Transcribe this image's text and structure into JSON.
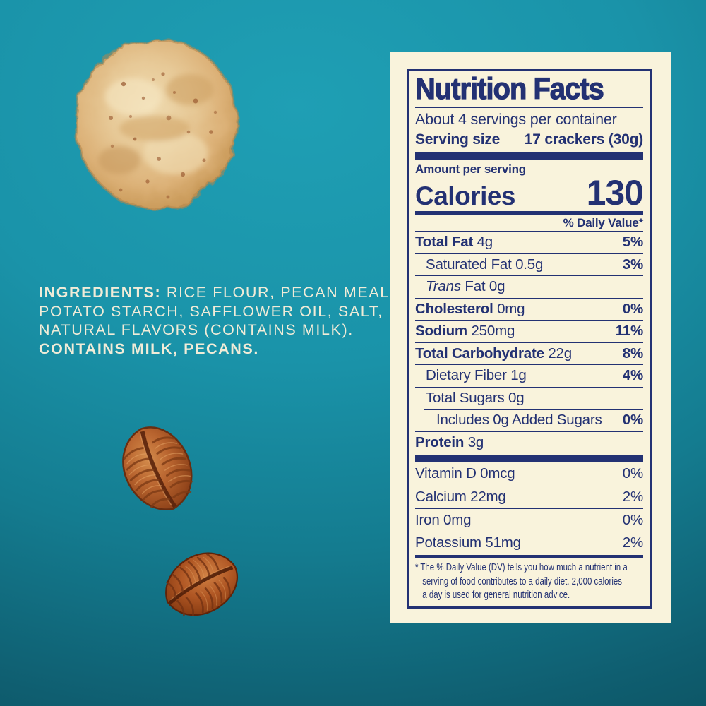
{
  "colors": {
    "background_teal_top": "#1f9fb4",
    "background_teal_bottom": "#0d5767",
    "label_cream": "#f9f3dc",
    "label_navy": "#233173",
    "ingredients_text": "#f1ecd8",
    "cracker_tan": "#e2c18d",
    "pecan_brown": "#b25a28"
  },
  "images": {
    "cracker": "round rice cracker with pecan flecks",
    "pecan_top": "pecan half",
    "pecan_bottom": "pecan half"
  },
  "ingredients": {
    "lines": [
      {
        "parts": [
          {
            "t": "INGREDIENTS:",
            "s": "b"
          },
          {
            "t": " RICE FLOUR, PECAN MEAL,",
            "s": "r"
          }
        ]
      },
      {
        "parts": [
          {
            "t": "POTATO STARCH, SAFFLOWER OIL, SALT,",
            "s": "r"
          }
        ]
      },
      {
        "parts": [
          {
            "t": "NATURAL FLAVORS (CONTAINS MILK).",
            "s": "r"
          }
        ]
      },
      {
        "parts": [
          {
            "t": "CONTAINS MILK, PECANS.",
            "s": "b"
          }
        ]
      }
    ]
  },
  "nutrition": {
    "title": "Nutrition Facts",
    "servings_per_container": "About 4 servings per container",
    "serving_size_label": "Serving size",
    "serving_size_value": "17 crackers (30g)",
    "amount_per_serving": "Amount per serving",
    "calories_label": "Calories",
    "calories_value": "130",
    "daily_value_header": "% Daily Value*",
    "rows": [
      {
        "parts": [
          {
            "t": "Total Fat",
            "s": "b"
          },
          {
            "t": " 4g",
            "s": "r"
          }
        ],
        "dv": "5%",
        "dv_bold": true,
        "indent": 0,
        "sep": "full"
      },
      {
        "parts": [
          {
            "t": "Saturated Fat 0.5g",
            "s": "r"
          }
        ],
        "dv": "3%",
        "dv_bold": true,
        "indent": 1,
        "sep": "full"
      },
      {
        "parts": [
          {
            "t": "Trans",
            "s": "i"
          },
          {
            "t": " Fat 0g",
            "s": "r"
          }
        ],
        "dv": "",
        "dv_bold": false,
        "indent": 1,
        "sep": "full"
      },
      {
        "parts": [
          {
            "t": "Cholesterol",
            "s": "b"
          },
          {
            "t": " 0mg",
            "s": "r"
          }
        ],
        "dv": "0%",
        "dv_bold": true,
        "indent": 0,
        "sep": "full"
      },
      {
        "parts": [
          {
            "t": "Sodium",
            "s": "b"
          },
          {
            "t": " 250mg",
            "s": "r"
          }
        ],
        "dv": "11%",
        "dv_bold": true,
        "indent": 0,
        "sep": "full"
      },
      {
        "parts": [
          {
            "t": "Total Carbohydrate",
            "s": "b"
          },
          {
            "t": " 22g",
            "s": "r"
          }
        ],
        "dv": "8%",
        "dv_bold": true,
        "indent": 0,
        "sep": "full"
      },
      {
        "parts": [
          {
            "t": "Dietary Fiber 1g",
            "s": "r"
          }
        ],
        "dv": "4%",
        "dv_bold": true,
        "indent": 1,
        "sep": "full"
      },
      {
        "parts": [
          {
            "t": "Total Sugars 0g",
            "s": "r"
          }
        ],
        "dv": "",
        "dv_bold": false,
        "indent": 1,
        "sep": "full"
      },
      {
        "parts": [
          {
            "t": "Includes 0g Added Sugars",
            "s": "r"
          }
        ],
        "dv": "0%",
        "dv_bold": true,
        "indent": 2,
        "sep": "indent"
      },
      {
        "parts": [
          {
            "t": "Protein",
            "s": "b"
          },
          {
            "t": " 3g",
            "s": "r"
          }
        ],
        "dv": "",
        "dv_bold": false,
        "indent": 0,
        "sep": "full"
      }
    ],
    "vitamins": [
      {
        "parts": [
          {
            "t": "Vitamin D 0mcg",
            "s": "r"
          }
        ],
        "dv": "0%",
        "dv_bold": false,
        "indent": 0,
        "sep": "none"
      },
      {
        "parts": [
          {
            "t": "Calcium 22mg",
            "s": "r"
          }
        ],
        "dv": "2%",
        "dv_bold": false,
        "indent": 0,
        "sep": "full"
      },
      {
        "parts": [
          {
            "t": "Iron 0mg",
            "s": "r"
          }
        ],
        "dv": "0%",
        "dv_bold": false,
        "indent": 0,
        "sep": "full"
      },
      {
        "parts": [
          {
            "t": "Potassium 51mg",
            "s": "r"
          }
        ],
        "dv": "2%",
        "dv_bold": false,
        "indent": 0,
        "sep": "full"
      }
    ],
    "footnote_lines": [
      "* The % Daily Value (DV) tells you how much a nutrient in a",
      "serving of food contributes to a daily diet. 2,000 calories",
      "a day is used for general nutrition advice."
    ]
  }
}
